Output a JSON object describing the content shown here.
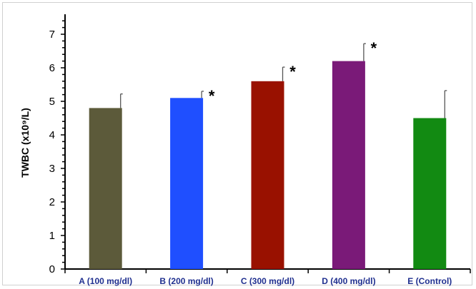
{
  "chart_data": {
    "type": "bar",
    "ylabel": "TWBC (x10⁹/L)",
    "ylim": [
      0,
      7
    ],
    "yticks": [
      "0",
      "1",
      "2",
      "3",
      "4",
      "5",
      "6",
      "7"
    ],
    "categories": [
      "A (100 mg/dl)",
      "B (200 mg/dl)",
      "C (300 mg/dl)",
      "D (400 mg/dl)",
      "E (Control)"
    ],
    "values": [
      4.8,
      5.1,
      5.6,
      6.2,
      4.5
    ],
    "errors": [
      0.42,
      0.2,
      0.42,
      0.52,
      0.82
    ],
    "significance": [
      "",
      "*",
      "*",
      "*",
      ""
    ],
    "colors": [
      "#5c5a3a",
      "#1f4fff",
      "#991100",
      "#7a1a78",
      "#128a12"
    ],
    "grid": false
  }
}
